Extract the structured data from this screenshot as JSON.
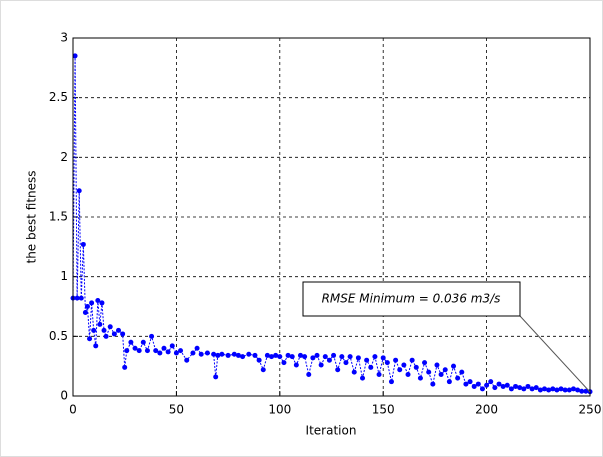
{
  "chart_data": {
    "type": "line",
    "xlabel": "Iteration",
    "ylabel": "the best fitness",
    "annotation": "RMSE Minimum = 0.036 m3/s",
    "x": [
      0,
      1,
      2,
      3,
      4,
      5,
      6,
      7,
      8,
      9,
      10,
      11,
      12,
      13,
      14,
      15,
      16,
      18,
      20,
      22,
      24,
      25,
      26,
      28,
      30,
      32,
      34,
      36,
      38,
      40,
      42,
      44,
      46,
      48,
      50,
      52,
      55,
      58,
      60,
      62,
      65,
      68,
      69,
      70,
      72,
      75,
      78,
      80,
      82,
      85,
      88,
      90,
      92,
      94,
      96,
      98,
      100,
      102,
      104,
      106,
      108,
      110,
      112,
      114,
      116,
      118,
      120,
      122,
      124,
      126,
      128,
      130,
      132,
      134,
      136,
      138,
      140,
      142,
      144,
      146,
      148,
      150,
      152,
      154,
      156,
      158,
      160,
      162,
      164,
      166,
      168,
      170,
      172,
      174,
      176,
      178,
      180,
      182,
      184,
      186,
      188,
      190,
      192,
      194,
      196,
      198,
      200,
      202,
      204,
      206,
      208,
      210,
      212,
      214,
      216,
      218,
      220,
      222,
      224,
      226,
      228,
      230,
      232,
      234,
      236,
      238,
      240,
      242,
      244,
      246,
      248,
      250
    ],
    "series": [
      {
        "color": "#0000ff",
        "values": [
          0.82,
          2.85,
          0.82,
          1.72,
          0.82,
          1.27,
          0.7,
          0.75,
          0.48,
          0.78,
          0.55,
          0.42,
          0.8,
          0.6,
          0.78,
          0.55,
          0.5,
          0.58,
          0.52,
          0.55,
          0.52,
          0.24,
          0.38,
          0.45,
          0.4,
          0.38,
          0.45,
          0.38,
          0.5,
          0.38,
          0.36,
          0.4,
          0.37,
          0.42,
          0.36,
          0.38,
          0.3,
          0.36,
          0.4,
          0.35,
          0.36,
          0.35,
          0.16,
          0.34,
          0.35,
          0.34,
          0.35,
          0.34,
          0.33,
          0.35,
          0.34,
          0.3,
          0.22,
          0.34,
          0.33,
          0.34,
          0.33,
          0.28,
          0.34,
          0.33,
          0.26,
          0.34,
          0.33,
          0.18,
          0.32,
          0.34,
          0.26,
          0.33,
          0.3,
          0.34,
          0.22,
          0.33,
          0.28,
          0.33,
          0.2,
          0.32,
          0.15,
          0.3,
          0.24,
          0.33,
          0.18,
          0.32,
          0.28,
          0.12,
          0.3,
          0.22,
          0.26,
          0.18,
          0.3,
          0.24,
          0.15,
          0.28,
          0.2,
          0.1,
          0.26,
          0.18,
          0.22,
          0.12,
          0.25,
          0.15,
          0.2,
          0.1,
          0.12,
          0.08,
          0.1,
          0.06,
          0.09,
          0.12,
          0.07,
          0.1,
          0.08,
          0.09,
          0.06,
          0.08,
          0.07,
          0.06,
          0.08,
          0.06,
          0.07,
          0.05,
          0.06,
          0.05,
          0.06,
          0.05,
          0.06,
          0.05,
          0.05,
          0.06,
          0.05,
          0.04,
          0.04,
          0.036
        ]
      }
    ],
    "xlim": [
      0,
      250
    ],
    "xticks": [
      0,
      50,
      100,
      150,
      200,
      250
    ],
    "ylim": [
      0,
      3
    ],
    "yticks": [
      0,
      0.5,
      1,
      1.5,
      2,
      2.5,
      3
    ],
    "grid": true
  }
}
